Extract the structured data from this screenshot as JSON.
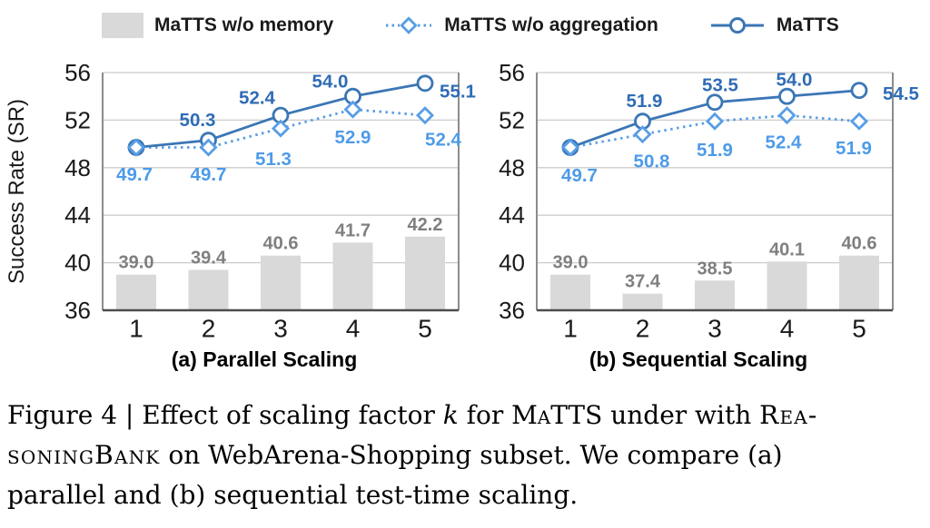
{
  "legend": {
    "items": [
      {
        "label": "MaTTS w/o memory",
        "marker": "gray-bar-swatch",
        "color": "#d9d9d9"
      },
      {
        "label": "MaTTS w/o aggregation",
        "marker": "dashed-diamond",
        "color": "#589ee5"
      },
      {
        "label": "MaTTS",
        "marker": "solid-line-circle",
        "color": "#3b76b5"
      }
    ]
  },
  "theme": {
    "background": "#ffffff",
    "grid": "#cccccc",
    "axis": "#4d4d4d",
    "spine": "#8c8c8c",
    "tick_text": "#1a1a1a"
  },
  "chart_data": [
    {
      "type": "bar+line",
      "title": "(a) Parallel Scaling",
      "categories": [
        "1",
        "2",
        "3",
        "4",
        "5"
      ],
      "xlabel": "",
      "ylabel": "Success Rate (SR)",
      "ylim": [
        36,
        56
      ],
      "yticks": [
        36,
        40,
        44,
        48,
        52,
        56
      ],
      "grid": true,
      "legend_position": "top",
      "series": [
        {
          "name": "MaTTS w/o memory",
          "type": "bar",
          "color": "#d9d9d9",
          "label_color": "#7f7f7f",
          "values": [
            39.0,
            39.4,
            40.6,
            41.7,
            42.2
          ],
          "labels": [
            "39.0",
            "39.4",
            "40.6",
            "41.7",
            "42.2"
          ]
        },
        {
          "name": "MaTTS w/o aggregation",
          "type": "line-dashed-diamond",
          "color": "#589ee5",
          "label_color": "#4d9be8",
          "values": [
            49.7,
            49.7,
            51.3,
            52.9,
            52.4
          ],
          "labels": [
            "49.7",
            "49.7",
            "51.3",
            "52.9",
            "52.4"
          ],
          "label_offsets": [
            [
              -2,
              30
            ],
            [
              0,
              30
            ],
            [
              -8,
              34
            ],
            [
              0,
              31
            ],
            [
              20,
              27
            ]
          ]
        },
        {
          "name": "MaTTS",
          "type": "line-solid-circle",
          "color": "#3b76b5",
          "label_color": "#2e6cb5",
          "values": [
            49.7,
            50.3,
            52.4,
            54.0,
            55.1
          ],
          "labels": [
            "",
            "50.3",
            "52.4",
            "54.0",
            "55.1"
          ],
          "label_offsets": [
            [
              0,
              0
            ],
            [
              -12,
              -22
            ],
            [
              -26,
              -19
            ],
            [
              -25,
              -16
            ],
            [
              36,
              9
            ]
          ]
        }
      ]
    },
    {
      "type": "bar+line",
      "title": "(b) Sequential Scaling",
      "categories": [
        "1",
        "2",
        "3",
        "4",
        "5"
      ],
      "xlabel": "",
      "ylabel": "Success Rate (SR)",
      "ylim": [
        36,
        56
      ],
      "yticks": [
        36,
        40,
        44,
        48,
        52,
        56
      ],
      "grid": true,
      "legend_position": "top",
      "series": [
        {
          "name": "MaTTS w/o memory",
          "type": "bar",
          "color": "#d9d9d9",
          "label_color": "#7f7f7f",
          "values": [
            39.0,
            37.4,
            38.5,
            40.1,
            40.6
          ],
          "labels": [
            "39.0",
            "37.4",
            "38.5",
            "40.1",
            "40.6"
          ]
        },
        {
          "name": "MaTTS w/o aggregation",
          "type": "line-dashed-diamond",
          "color": "#589ee5",
          "label_color": "#4d9be8",
          "values": [
            49.7,
            50.8,
            51.9,
            52.4,
            51.9
          ],
          "labels": [
            "49.7",
            "50.8",
            "51.9",
            "52.4",
            "51.9"
          ],
          "label_offsets": [
            [
              10,
              31
            ],
            [
              10,
              30
            ],
            [
              0,
              32
            ],
            [
              -4,
              30
            ],
            [
              -6,
              30
            ]
          ]
        },
        {
          "name": "MaTTS",
          "type": "line-solid-circle",
          "color": "#3b76b5",
          "label_color": "#2e6cb5",
          "values": [
            49.7,
            51.9,
            53.5,
            54.0,
            54.5
          ],
          "labels": [
            "",
            "51.9",
            "53.5",
            "54.0",
            "54.5"
          ],
          "label_offsets": [
            [
              0,
              0
            ],
            [
              2,
              -22
            ],
            [
              6,
              -19
            ],
            [
              8,
              -18
            ],
            [
              46,
              4
            ]
          ]
        }
      ]
    }
  ],
  "caption": {
    "line1": {
      "prefix": "Figure 4 | Effect of scaling factor ",
      "k": "k",
      "mid": " for ",
      "matts": "MaTTS",
      "post": " under with ",
      "rea": "Rea-"
    },
    "line2": {
      "soningbank": "soningBank",
      "rest": " on WebArena-Shopping subset. We compare (a)"
    },
    "line3": "parallel and (b) sequential test-time scaling."
  }
}
